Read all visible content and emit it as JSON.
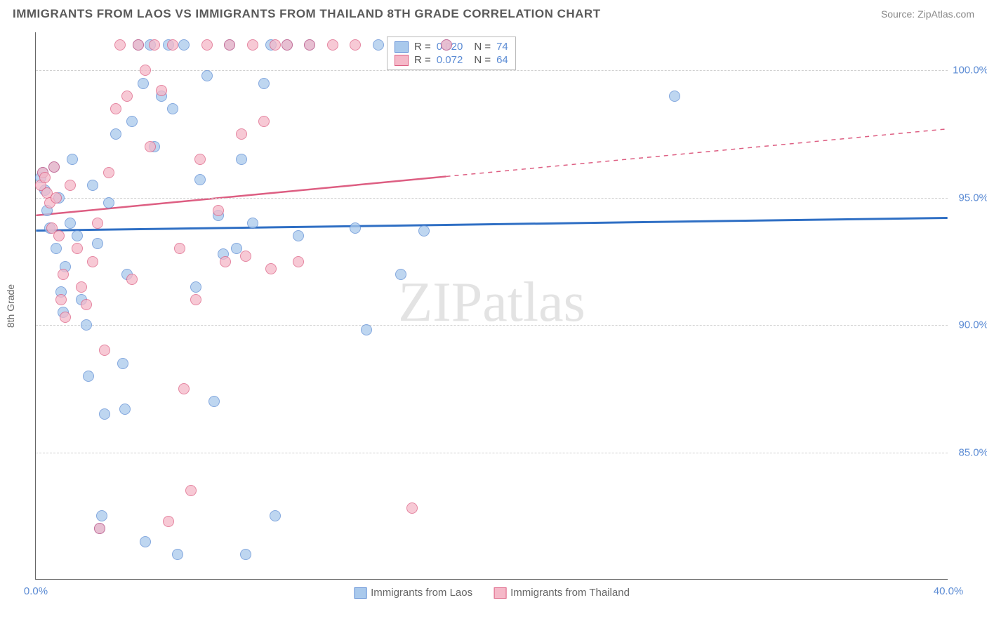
{
  "header": {
    "title": "IMMIGRANTS FROM LAOS VS IMMIGRANTS FROM THAILAND 8TH GRADE CORRELATION CHART",
    "source_prefix": "Source: ",
    "source_name": "ZipAtlas.com"
  },
  "chart": {
    "type": "scatter",
    "ylabel": "8th Grade",
    "background_color": "#ffffff",
    "grid_color": "#d0d0d0",
    "axis_color": "#666666",
    "xlim": [
      0,
      40
    ],
    "ylim": [
      80,
      101.5
    ],
    "yticks": [
      {
        "v": 85.0,
        "label": "85.0%"
      },
      {
        "v": 90.0,
        "label": "90.0%"
      },
      {
        "v": 95.0,
        "label": "95.0%"
      },
      {
        "v": 100.0,
        "label": "100.0%"
      }
    ],
    "xticks": [
      {
        "v": 0.0,
        "label": "0.0%"
      },
      {
        "v": 40.0,
        "label": "40.0%"
      }
    ],
    "watermark": {
      "part1": "ZIP",
      "part2": "atlas"
    },
    "series": [
      {
        "name": "Immigrants from Laos",
        "R": "0.020",
        "N": "74",
        "fill": "#a9c9ec",
        "stroke": "#5b8bd4",
        "fill_opacity": 0.55,
        "marker_radius": 8,
        "trend": {
          "y_at_xmin": 93.7,
          "y_at_xmax": 94.2,
          "solid_until_x": 40,
          "stroke": "#2f6fc4",
          "width": 3
        },
        "points": [
          [
            0.2,
            95.8
          ],
          [
            0.3,
            96.0
          ],
          [
            0.4,
            95.3
          ],
          [
            0.5,
            94.5
          ],
          [
            0.6,
            93.8
          ],
          [
            0.8,
            96.2
          ],
          [
            0.9,
            93.0
          ],
          [
            1.0,
            95.0
          ],
          [
            1.1,
            91.3
          ],
          [
            1.2,
            90.5
          ],
          [
            1.3,
            92.3
          ],
          [
            1.5,
            94.0
          ],
          [
            1.6,
            96.5
          ],
          [
            1.8,
            93.5
          ],
          [
            2.0,
            91.0
          ],
          [
            2.2,
            90.0
          ],
          [
            2.3,
            88.0
          ],
          [
            2.5,
            95.5
          ],
          [
            2.7,
            93.2
          ],
          [
            2.8,
            82.0
          ],
          [
            2.9,
            82.5
          ],
          [
            3.0,
            86.5
          ],
          [
            3.2,
            94.8
          ],
          [
            3.5,
            97.5
          ],
          [
            3.8,
            88.5
          ],
          [
            3.9,
            86.7
          ],
          [
            4.0,
            92.0
          ],
          [
            4.2,
            98.0
          ],
          [
            4.5,
            101.0
          ],
          [
            4.7,
            99.5
          ],
          [
            4.8,
            81.5
          ],
          [
            5.0,
            101.0
          ],
          [
            5.2,
            97.0
          ],
          [
            5.5,
            99.0
          ],
          [
            5.8,
            101.0
          ],
          [
            6.0,
            98.5
          ],
          [
            6.2,
            81.0
          ],
          [
            6.5,
            101.0
          ],
          [
            7.0,
            91.5
          ],
          [
            7.2,
            95.7
          ],
          [
            7.5,
            99.8
          ],
          [
            7.8,
            87.0
          ],
          [
            8.0,
            94.3
          ],
          [
            8.2,
            92.8
          ],
          [
            8.5,
            101.0
          ],
          [
            8.8,
            93.0
          ],
          [
            9.0,
            96.5
          ],
          [
            9.2,
            81.0
          ],
          [
            9.5,
            94.0
          ],
          [
            10.0,
            99.5
          ],
          [
            10.3,
            101.0
          ],
          [
            10.5,
            82.5
          ],
          [
            11.0,
            101.0
          ],
          [
            11.5,
            93.5
          ],
          [
            12.0,
            101.0
          ],
          [
            14.0,
            93.8
          ],
          [
            14.5,
            89.8
          ],
          [
            15.0,
            101.0
          ],
          [
            16.0,
            92.0
          ],
          [
            17.0,
            93.7
          ],
          [
            18.0,
            101.0
          ],
          [
            28.0,
            99.0
          ]
        ]
      },
      {
        "name": "Immigrants from Thailand",
        "R": "0.072",
        "N": "64",
        "fill": "#f5b8c8",
        "stroke": "#dd5e82",
        "fill_opacity": 0.55,
        "marker_radius": 8,
        "trend": {
          "y_at_xmin": 94.3,
          "y_at_xmax": 97.7,
          "solid_until_x": 18,
          "stroke": "#dd5e82",
          "width": 2.5
        },
        "points": [
          [
            0.2,
            95.5
          ],
          [
            0.3,
            96.0
          ],
          [
            0.4,
            95.8
          ],
          [
            0.5,
            95.2
          ],
          [
            0.6,
            94.8
          ],
          [
            0.7,
            93.8
          ],
          [
            0.8,
            96.2
          ],
          [
            0.9,
            95.0
          ],
          [
            1.0,
            93.5
          ],
          [
            1.1,
            91.0
          ],
          [
            1.2,
            92.0
          ],
          [
            1.3,
            90.3
          ],
          [
            1.5,
            95.5
          ],
          [
            1.8,
            93.0
          ],
          [
            2.0,
            91.5
          ],
          [
            2.2,
            90.8
          ],
          [
            2.5,
            92.5
          ],
          [
            2.7,
            94.0
          ],
          [
            2.8,
            82.0
          ],
          [
            3.0,
            89.0
          ],
          [
            3.2,
            96.0
          ],
          [
            3.5,
            98.5
          ],
          [
            3.7,
            101.0
          ],
          [
            4.0,
            99.0
          ],
          [
            4.2,
            91.8
          ],
          [
            4.5,
            101.0
          ],
          [
            4.8,
            100.0
          ],
          [
            5.0,
            97.0
          ],
          [
            5.2,
            101.0
          ],
          [
            5.5,
            99.2
          ],
          [
            5.8,
            82.3
          ],
          [
            6.0,
            101.0
          ],
          [
            6.3,
            93.0
          ],
          [
            6.5,
            87.5
          ],
          [
            6.8,
            83.5
          ],
          [
            7.0,
            91.0
          ],
          [
            7.2,
            96.5
          ],
          [
            7.5,
            101.0
          ],
          [
            8.0,
            94.5
          ],
          [
            8.3,
            92.5
          ],
          [
            8.5,
            101.0
          ],
          [
            9.0,
            97.5
          ],
          [
            9.2,
            92.7
          ],
          [
            9.5,
            101.0
          ],
          [
            10.0,
            98.0
          ],
          [
            10.3,
            92.2
          ],
          [
            10.5,
            101.0
          ],
          [
            11.0,
            101.0
          ],
          [
            11.5,
            92.5
          ],
          [
            12.0,
            101.0
          ],
          [
            13.0,
            101.0
          ],
          [
            14.0,
            101.0
          ],
          [
            16.5,
            82.8
          ],
          [
            18.0,
            101.0
          ]
        ]
      }
    ],
    "legend_corr": {
      "r_label": "R =",
      "n_label": "N ="
    },
    "legend_bottom_labels": [
      "Immigrants from Laos",
      "Immigrants from Thailand"
    ]
  }
}
